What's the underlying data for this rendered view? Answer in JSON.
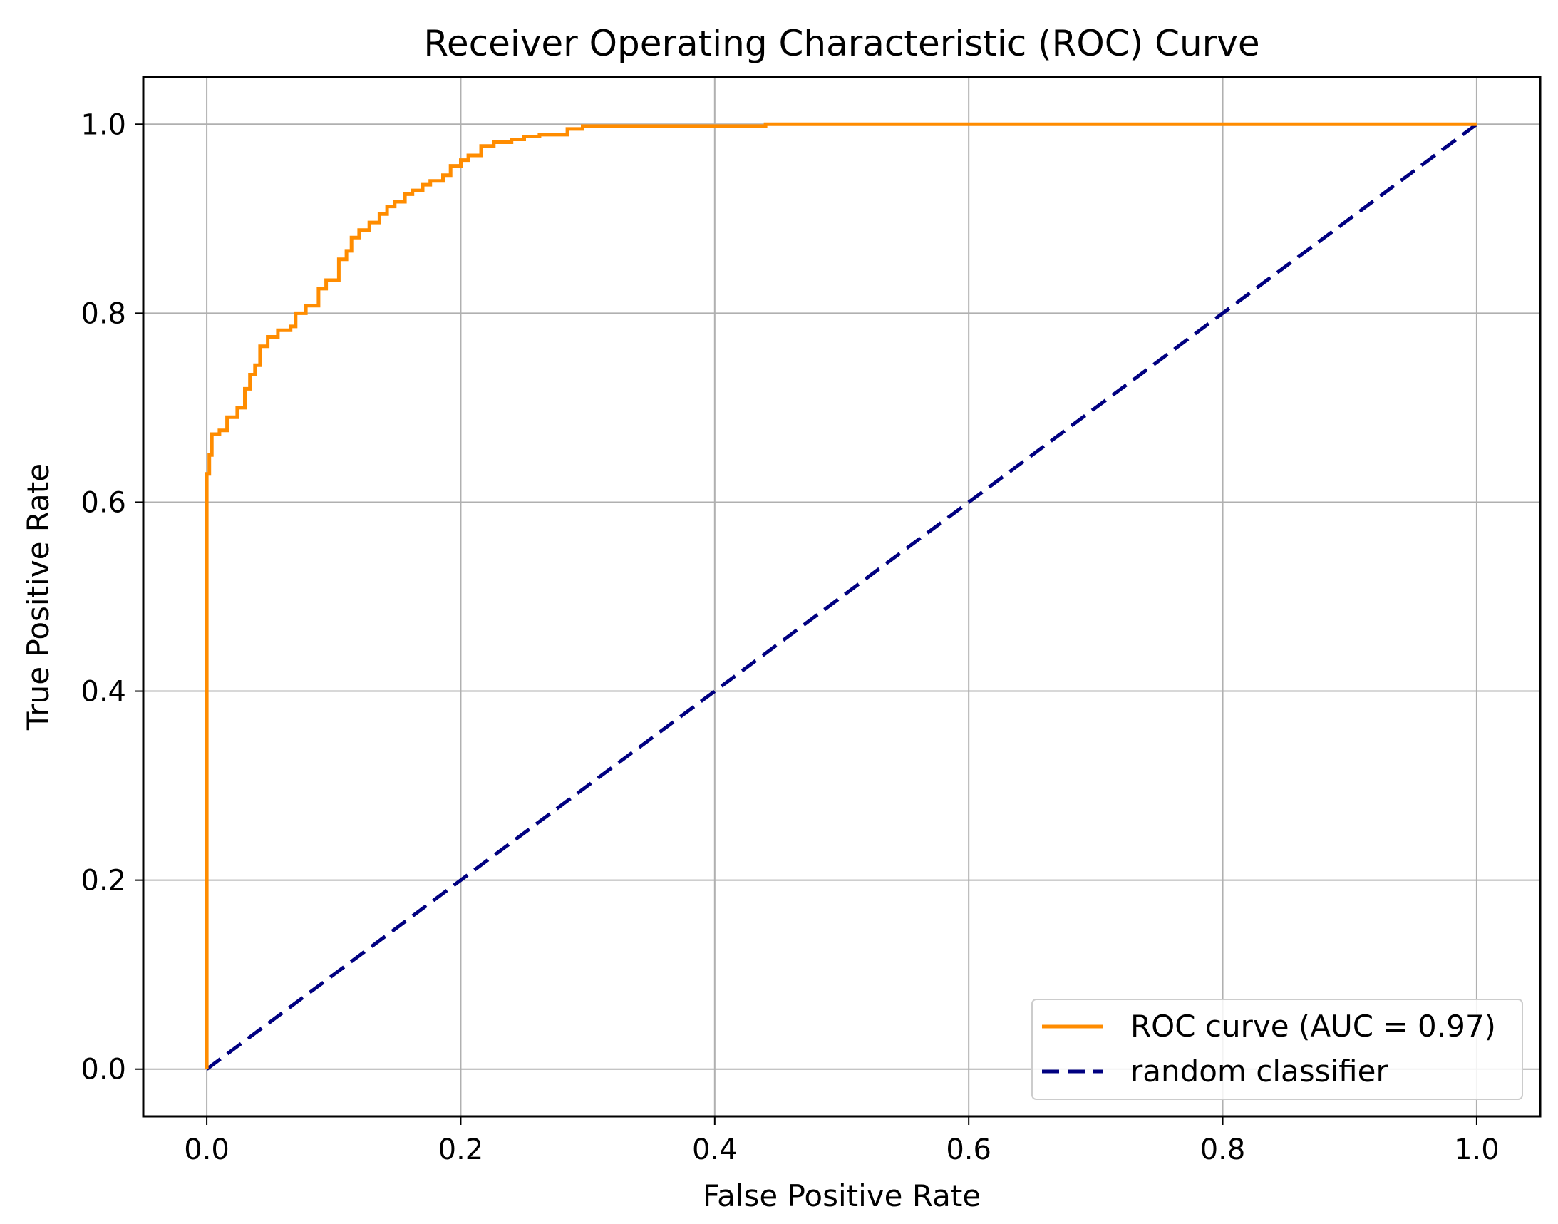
{
  "chart_data": {
    "type": "line",
    "title": "Receiver Operating Characteristic (ROC) Curve",
    "xlabel": "False Positive Rate",
    "ylabel": "True Positive Rate",
    "xlim": [
      -0.05,
      1.05
    ],
    "ylim": [
      -0.05,
      1.05
    ],
    "grid": true,
    "legend_position": "lower right",
    "x_ticks": [
      0.0,
      0.2,
      0.4,
      0.6,
      0.8,
      1.0
    ],
    "y_ticks": [
      0.0,
      0.2,
      0.4,
      0.6,
      0.8,
      1.0
    ],
    "x_tick_labels": [
      "0.0",
      "0.2",
      "0.4",
      "0.6",
      "0.8",
      "1.0"
    ],
    "y_tick_labels": [
      "0.0",
      "0.2",
      "0.4",
      "0.6",
      "0.8",
      "1.0"
    ],
    "series": [
      {
        "name": "ROC curve (AUC = 0.97)",
        "color": "#ff8c00",
        "style": "solid",
        "x": [
          0.0,
          0.0,
          0.002,
          0.002,
          0.004,
          0.004,
          0.01,
          0.01,
          0.016,
          0.016,
          0.024,
          0.024,
          0.03,
          0.03,
          0.034,
          0.034,
          0.038,
          0.038,
          0.042,
          0.042,
          0.048,
          0.048,
          0.056,
          0.056,
          0.066,
          0.066,
          0.07,
          0.07,
          0.078,
          0.078,
          0.088,
          0.088,
          0.094,
          0.094,
          0.104,
          0.104,
          0.11,
          0.11,
          0.114,
          0.114,
          0.12,
          0.12,
          0.128,
          0.128,
          0.136,
          0.136,
          0.142,
          0.142,
          0.148,
          0.148,
          0.156,
          0.156,
          0.162,
          0.162,
          0.17,
          0.17,
          0.176,
          0.176,
          0.186,
          0.186,
          0.192,
          0.192,
          0.2,
          0.2,
          0.206,
          0.206,
          0.216,
          0.216,
          0.226,
          0.226,
          0.24,
          0.24,
          0.25,
          0.25,
          0.262,
          0.262,
          0.284,
          0.284,
          0.296,
          0.296,
          0.44,
          0.44,
          1.0
        ],
        "y": [
          0.0,
          0.63,
          0.63,
          0.65,
          0.65,
          0.672,
          0.672,
          0.676,
          0.676,
          0.69,
          0.69,
          0.7,
          0.7,
          0.72,
          0.72,
          0.735,
          0.735,
          0.745,
          0.745,
          0.765,
          0.765,
          0.775,
          0.775,
          0.782,
          0.782,
          0.786,
          0.786,
          0.8,
          0.8,
          0.808,
          0.808,
          0.826,
          0.826,
          0.835,
          0.835,
          0.857,
          0.857,
          0.866,
          0.866,
          0.88,
          0.88,
          0.888,
          0.888,
          0.896,
          0.896,
          0.905,
          0.905,
          0.913,
          0.913,
          0.918,
          0.918,
          0.926,
          0.926,
          0.93,
          0.93,
          0.936,
          0.936,
          0.94,
          0.94,
          0.946,
          0.946,
          0.956,
          0.956,
          0.962,
          0.962,
          0.967,
          0.967,
          0.977,
          0.977,
          0.981,
          0.981,
          0.984,
          0.984,
          0.987,
          0.987,
          0.989,
          0.989,
          0.995,
          0.995,
          0.998,
          0.998,
          1.0,
          1.0
        ]
      },
      {
        "name": "random classifier",
        "color": "#000080",
        "style": "dashed",
        "x": [
          0.0,
          1.0
        ],
        "y": [
          0.0,
          1.0
        ]
      }
    ]
  }
}
